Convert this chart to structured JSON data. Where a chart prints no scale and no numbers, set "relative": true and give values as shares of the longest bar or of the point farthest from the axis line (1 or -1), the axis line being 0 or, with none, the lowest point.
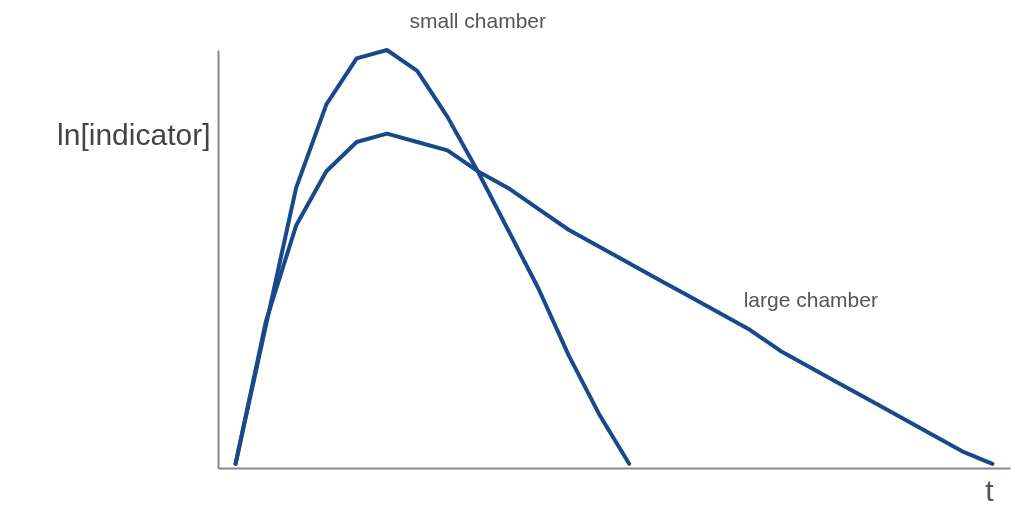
{
  "chart_data": {
    "type": "line",
    "relative": true,
    "xlabel": "t",
    "ylabel": "ln[indicator]",
    "categories": [
      null,
      null,
      null,
      null,
      null,
      null,
      null,
      null,
      null,
      null,
      null,
      null,
      null,
      null,
      null,
      null,
      null,
      null,
      null,
      null,
      null,
      null,
      null,
      null,
      null,
      null
    ],
    "series": [
      {
        "name": "small chamber",
        "color": "#174a8b",
        "values": [
          0.01,
          0.34,
          0.67,
          0.87,
          0.98,
          1,
          0.95,
          0.84,
          0.71,
          0.57,
          0.43,
          0.27,
          0.13,
          0.01,
          null,
          null,
          null,
          null,
          null,
          null,
          null,
          null,
          null,
          null,
          null,
          null
        ]
      },
      {
        "name": "large chamber",
        "color": "#174a8b",
        "values": [
          0.01,
          0.35,
          0.58,
          0.71,
          0.78,
          0.8,
          0.78,
          0.76,
          0.71,
          0.67,
          0.62,
          0.57,
          0.53,
          0.49,
          0.45,
          0.41,
          0.37,
          0.33,
          0.28,
          0.24,
          0.2,
          0.16,
          0.12,
          0.08,
          0.04,
          0.01
        ]
      }
    ]
  }
}
